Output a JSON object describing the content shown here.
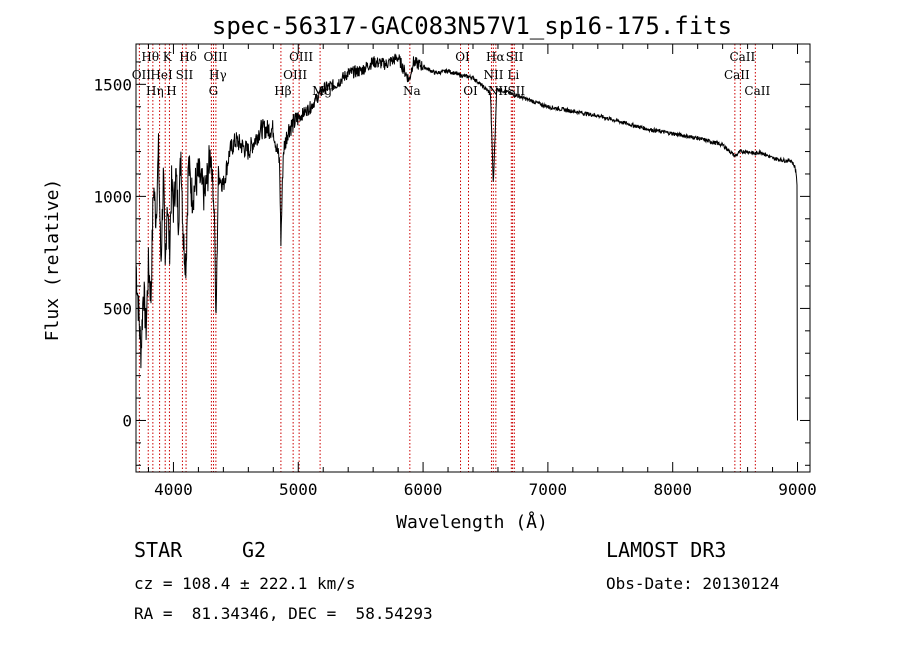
{
  "chart_data": {
    "type": "line",
    "title": "spec-56317-GAC083N57V1_sp16-175.fits",
    "xlabel": "Wavelength (Å)",
    "ylabel": "Flux (relative)",
    "xlim": [
      3700,
      9100
    ],
    "ylim": [
      -230,
      1680
    ],
    "xticks": [
      4000,
      5000,
      6000,
      7000,
      8000,
      9000
    ],
    "yticks": [
      0,
      500,
      1000,
      1500
    ],
    "xtick_labels": [
      "4000",
      "5000",
      "6000",
      "7000",
      "8000",
      "9000"
    ],
    "ytick_labels": [
      "0",
      "500",
      "1000",
      "1500"
    ],
    "series": [
      {
        "name": "spectrum",
        "x": [
          3700,
          3720,
          3740,
          3760,
          3780,
          3800,
          3820,
          3840,
          3860,
          3880,
          3900,
          3920,
          3934,
          3950,
          3968,
          3985,
          4000,
          4020,
          4040,
          4060,
          4080,
          4101,
          4120,
          4150,
          4200,
          4250,
          4300,
          4330,
          4340,
          4360,
          4400,
          4450,
          4500,
          4600,
          4700,
          4800,
          4850,
          4861,
          4880,
          4920,
          5000,
          5100,
          5200,
          5300,
          5400,
          5500,
          5600,
          5700,
          5800,
          5850,
          5890,
          5920,
          6000,
          6100,
          6200,
          6300,
          6400,
          6500,
          6540,
          6563,
          6590,
          6650,
          6700,
          6800,
          6900,
          7000,
          7200,
          7400,
          7600,
          7800,
          8000,
          8200,
          8400,
          8498,
          8542,
          8600,
          8662,
          8700,
          8800,
          8900,
          8950,
          8980,
          8990,
          9000
        ],
        "y": [
          700,
          500,
          300,
          600,
          400,
          700,
          550,
          1050,
          900,
          1200,
          700,
          1100,
          650,
          1000,
          750,
          1050,
          950,
          1100,
          900,
          1200,
          800,
          700,
          1150,
          1000,
          1100,
          1000,
          1200,
          900,
          400,
          1100,
          1050,
          1200,
          1250,
          1200,
          1300,
          1300,
          1150,
          800,
          1200,
          1300,
          1350,
          1400,
          1480,
          1500,
          1550,
          1560,
          1600,
          1590,
          1620,
          1560,
          1520,
          1600,
          1580,
          1550,
          1560,
          1540,
          1530,
          1480,
          1460,
          1050,
          1480,
          1470,
          1460,
          1440,
          1420,
          1400,
          1380,
          1360,
          1330,
          1300,
          1280,
          1260,
          1230,
          1180,
          1200,
          1200,
          1190,
          1200,
          1170,
          1160,
          1160,
          1130,
          1100,
          1050
        ]
      }
    ],
    "line_markers": [
      {
        "name": "Hθ",
        "wavelength": 3798,
        "label_row": 0
      },
      {
        "name": "OII",
        "wavelength": 3727,
        "label_row": 1
      },
      {
        "name": "Hη",
        "wavelength": 3835,
        "label_row": 2
      },
      {
        "name": "HeI",
        "wavelength": 3889,
        "label_row": 1
      },
      {
        "name": "K",
        "wavelength": 3934,
        "label_row": 0
      },
      {
        "name": "H",
        "wavelength": 3968,
        "label_row": 2
      },
      {
        "name": "SII",
        "wavelength": 4072,
        "label_row": 1
      },
      {
        "name": "Hδ",
        "wavelength": 4101,
        "label_row": 0
      },
      {
        "name": "G",
        "wavelength": 4304,
        "label_row": 2
      },
      {
        "name": "OIII",
        "wavelength": 4321,
        "label_row": 0
      },
      {
        "name": "Hγ",
        "wavelength": 4340,
        "label_row": 1
      },
      {
        "name": "Hβ",
        "wavelength": 4861,
        "label_row": 2
      },
      {
        "name": "OIII",
        "wavelength": 4959,
        "label_row": 1
      },
      {
        "name": "OIII",
        "wavelength": 5007,
        "label_row": 0
      },
      {
        "name": "Mg",
        "wavelength": 5175,
        "label_row": 2
      },
      {
        "name": "Na",
        "wavelength": 5894,
        "label_row": 2
      },
      {
        "name": "OI",
        "wavelength": 6300,
        "label_row": 0
      },
      {
        "name": "OI",
        "wavelength": 6364,
        "label_row": 2
      },
      {
        "name": "NII",
        "wavelength": 6548,
        "label_row": 1
      },
      {
        "name": "Hα",
        "wavelength": 6563,
        "label_row": 0
      },
      {
        "name": "NII",
        "wavelength": 6583,
        "label_row": 2
      },
      {
        "name": "Li",
        "wavelength": 6707,
        "label_row": 1
      },
      {
        "name": "SII",
        "wavelength": 6717,
        "label_row": 0
      },
      {
        "name": "SII",
        "wavelength": 6731,
        "label_row": 2
      },
      {
        "name": "CaII",
        "wavelength": 8498,
        "label_row": 1
      },
      {
        "name": "CaII",
        "wavelength": 8542,
        "label_row": 0
      },
      {
        "name": "CaII",
        "wavelength": 8662,
        "label_row": 2
      }
    ]
  },
  "info": {
    "class": "STAR",
    "subclass": "G2",
    "survey": "LAMOST DR3",
    "cz": "cz = 108.4 ± 222.1 km/s",
    "obs_date": "Obs-Date: 20130124",
    "coords": "RA =  81.34346, DEC =  58.54293"
  },
  "colors": {
    "line": "#000000",
    "marker": "#cc0000",
    "background": "#ffffff"
  }
}
